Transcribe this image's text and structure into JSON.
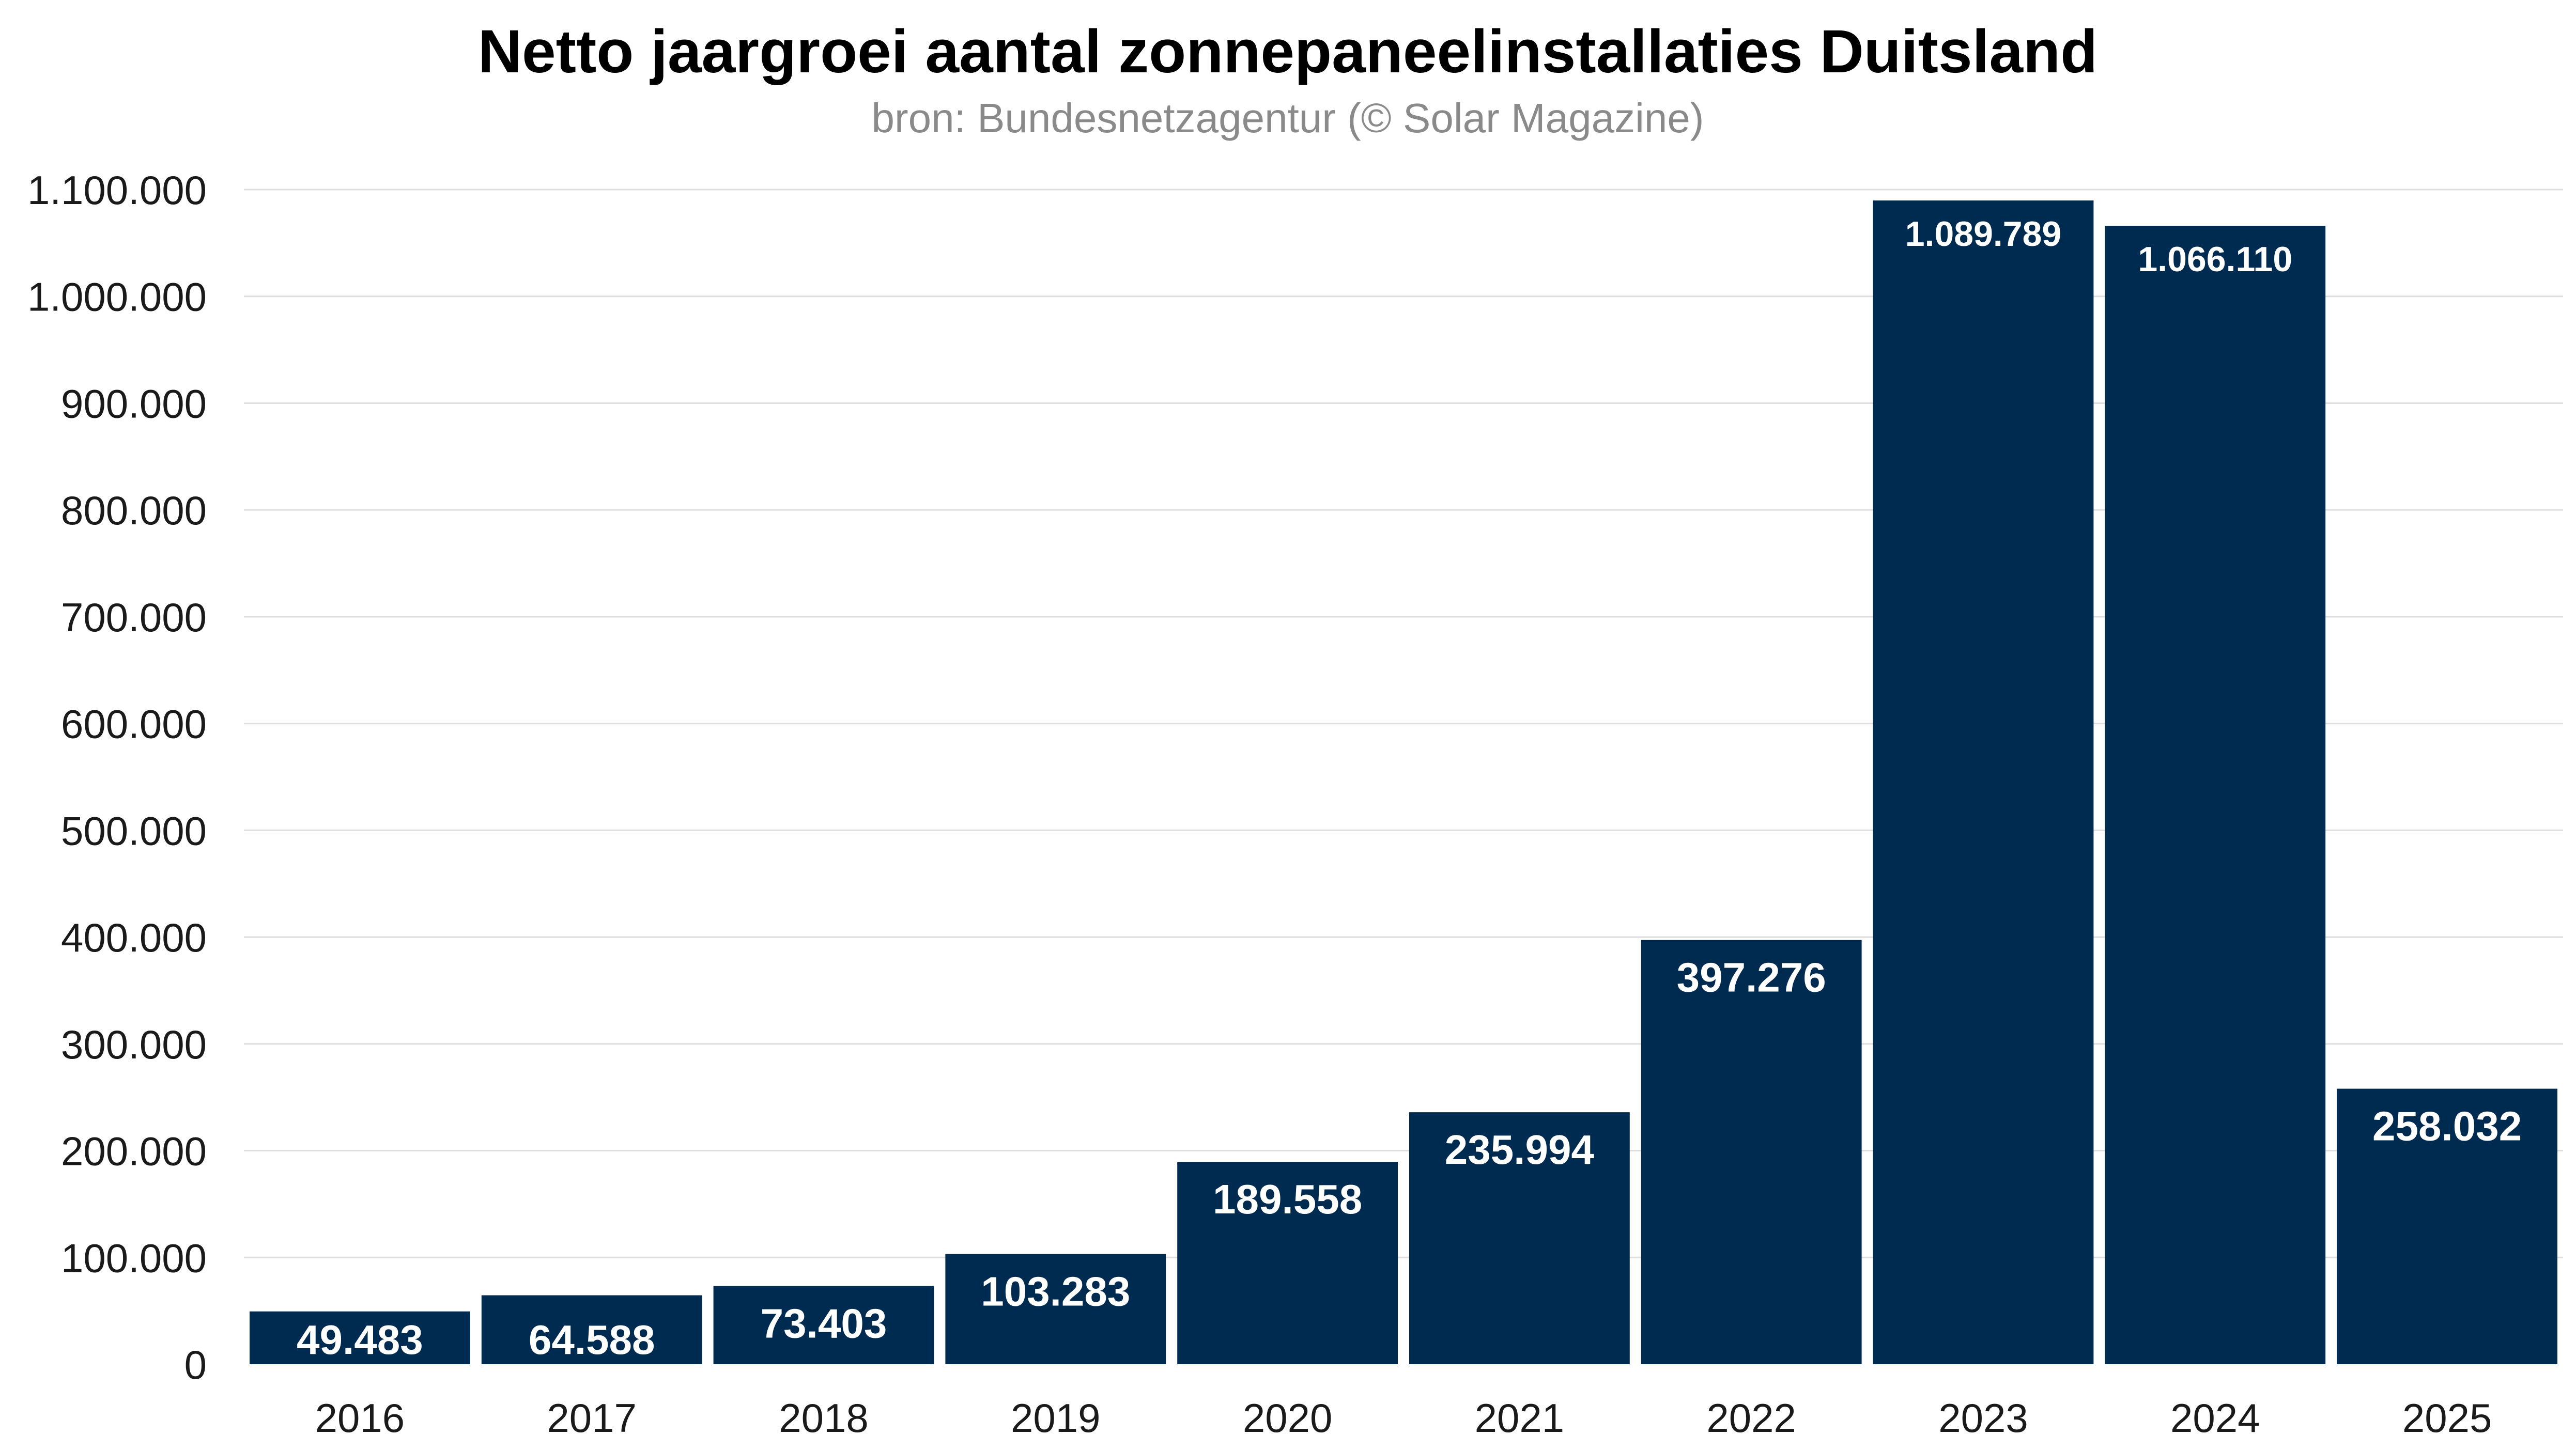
{
  "chart_data": {
    "type": "bar",
    "title": "Netto jaargroei aantal zonnepaneelinstallaties Duitsland",
    "subtitle": "bron: Bundesnetzagentur (© Solar Magazine)",
    "xlabel": "",
    "ylabel": "",
    "categories": [
      "2016",
      "2017",
      "2018",
      "2019",
      "2020",
      "2021",
      "2022",
      "2023",
      "2024",
      "2025"
    ],
    "values": [
      49483,
      64588,
      73403,
      103283,
      189558,
      235994,
      397276,
      1089789,
      1066110,
      258032
    ],
    "value_labels": [
      "49.483",
      "64.588",
      "73.403",
      "103.283",
      "189.558",
      "235.994",
      "397.276",
      "1.089.789",
      "1.066.110",
      "258.032"
    ],
    "ylim": [
      0,
      1100000
    ],
    "yticks": [
      0,
      100000,
      200000,
      300000,
      400000,
      500000,
      600000,
      700000,
      800000,
      900000,
      1000000,
      1100000
    ],
    "ytick_labels": [
      "0",
      "100.000",
      "200.000",
      "300.000",
      "400.000",
      "500.000",
      "600.000",
      "700.000",
      "800.000",
      "900.000",
      "1.000.000",
      "1.100.000"
    ],
    "grid": true,
    "legend": "none",
    "bar_color": "#002b50",
    "label_color": "#ffffff"
  }
}
